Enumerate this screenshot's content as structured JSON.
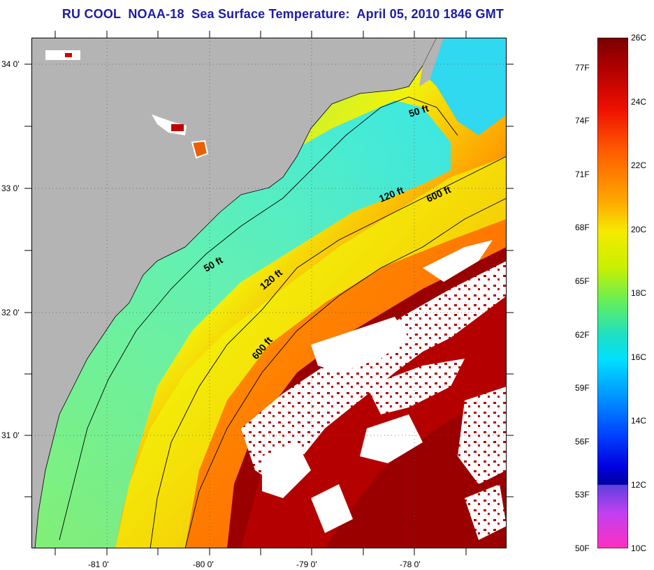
{
  "title": "RU COOL  NOAA-18  Sea Surface Temperature:  April 05, 2010 1846 GMT",
  "map": {
    "longitude_labels": [
      "-81 0'",
      "-80 0'",
      "-79 0'",
      "-78 0'"
    ],
    "latitude_labels": [
      "34 0'",
      "33 0'",
      "32 0'",
      "31 0'"
    ],
    "contour_labels": [
      "50 ft",
      "120 ft",
      "600 ft",
      "50 ft",
      "120 ft",
      "600 ft"
    ],
    "colors": {
      "land": "#b4b4b4",
      "cloud": "#ffffff",
      "cold": "#00e5ff",
      "cool": "#7cf07c",
      "mid": "#f2f20a",
      "warm": "#ff8000",
      "hot": "#e00000",
      "gulfstream": "#8b0000"
    }
  },
  "colorbar": {
    "celsius_labels": [
      "26C",
      "24C",
      "22C",
      "20C",
      "18C",
      "16C",
      "14C",
      "12C",
      "10C"
    ],
    "fahrenheit_labels": [
      "77F",
      "74F",
      "71F",
      "68F",
      "65F",
      "62F",
      "59F",
      "56F",
      "53F",
      "50F"
    ],
    "range_c": [
      10,
      26
    ],
    "range_f": [
      50,
      78.8
    ]
  }
}
